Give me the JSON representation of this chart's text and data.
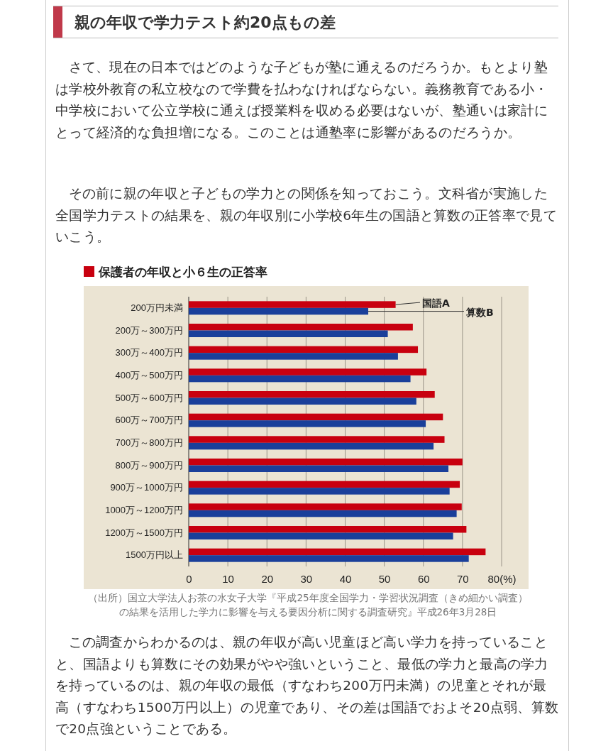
{
  "chart_data": {
    "type": "bar",
    "orientation": "horizontal",
    "title": "保護者の年収と小６生の正答率",
    "categories": [
      "200万円未満",
      "200万～300万円",
      "300万～400万円",
      "400万～500万円",
      "500万～600万円",
      "600万～700万円",
      "700万～800万円",
      "800万～900万円",
      "900万～1000万円",
      "1000万～1200万円",
      "1200万～1500万円",
      "1500万円以上"
    ],
    "series": [
      {
        "name": "国語A",
        "color": "#c8000f",
        "values": [
          52.9,
          57.3,
          58.6,
          60.8,
          62.9,
          65.0,
          65.4,
          70.0,
          69.3,
          69.8,
          71.0,
          75.9
        ]
      },
      {
        "name": "算数B",
        "color": "#1a3f9a",
        "values": [
          45.9,
          50.9,
          53.5,
          56.7,
          58.2,
          60.6,
          62.6,
          66.4,
          66.7,
          68.5,
          67.6,
          71.6
        ]
      }
    ],
    "xlim": [
      0,
      80
    ],
    "xticks": [
      0,
      10,
      20,
      30,
      40,
      50,
      60,
      70,
      {
        "value": 80,
        "label": "80(%)"
      }
    ],
    "grid": "x",
    "legend": "top right",
    "annotations": [
      "親の年収で学力テスト約20点もの差",
      "さて、現在の日本ではどのような子どもが塾に通えるのだろうか。もとより塾は学校外教育の私立校なので学費を払わなければならない。義務教育である小・中学校において公立学校に通えば授業料を収める必要はないが、塾通いは家計にとって経済的な負担増になる。このことは通塾率に影響があるのだろうか。",
      "その前に親の年収と子どもの学力との関係を知っておこう。文科省が実施した全国学力テストの結果を、親の年収別に小学校6年生の国語と算数の正答率で見ていこう。",
      "（出所）国立大学法人お茶の水女子大学『平成25年度全国学力・学習状況調査（きめ細かい調査）の結果を活用した学力に影響を与える要因分析に関する調査研究』平成26年3月28日",
      "この調査からわかるのは、親の年収が高い児童ほど高い学力を持っていることと、国語よりも算数にその効果がやや強いということ、最低の学力と最高の学力を持っているのは、親の年収の最低（すなわち200万円未満）の児童とそれが最高（すなわち1500万円以上）の児童であり、その差は国語でおよそ20点弱、算数で20点強ということである。"
    ]
  }
}
